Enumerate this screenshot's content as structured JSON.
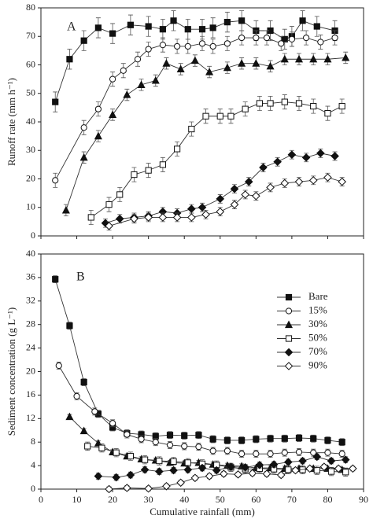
{
  "chart_data": [
    {
      "type": "line",
      "annotation": "A",
      "ylabel": "Runoff rate (mm h⁻¹)",
      "xlim": [
        0,
        90
      ],
      "xticks": [
        0,
        10,
        20,
        30,
        40,
        50,
        60,
        70,
        80,
        90
      ],
      "ylim": [
        0,
        80
      ],
      "yticks": [
        0,
        10,
        20,
        30,
        40,
        50,
        60,
        70,
        80
      ],
      "series": [
        {
          "marker": "square",
          "filled": true,
          "error": 3.5,
          "x": [
            4,
            8,
            12,
            16,
            20,
            25,
            30,
            34,
            37,
            41,
            45,
            48,
            52,
            56,
            60,
            64,
            68,
            70,
            73,
            77,
            82
          ],
          "values": [
            47,
            62,
            68.5,
            73,
            71,
            74,
            73.5,
            72.5,
            75.5,
            72.5,
            72.5,
            73,
            75,
            75.5,
            72,
            72,
            69,
            70,
            75.5,
            73.5,
            72
          ]
        },
        {
          "marker": "circle",
          "filled": false,
          "error": 2.5,
          "x": [
            4,
            12,
            16,
            20,
            23,
            27,
            30,
            34,
            38,
            41,
            45,
            48,
            52,
            56,
            60,
            63,
            67,
            70,
            74,
            78,
            82
          ],
          "values": [
            19.5,
            38,
            44.5,
            55,
            58,
            62,
            65.5,
            67,
            66.5,
            66.5,
            67.5,
            66.5,
            67.5,
            69.5,
            69.5,
            69.5,
            67.5,
            69,
            69.5,
            68,
            69.5
          ]
        },
        {
          "marker": "triangle",
          "filled": true,
          "error": 2,
          "x": [
            7,
            12,
            16,
            20,
            24,
            28,
            32,
            35,
            39,
            43,
            47,
            52,
            56,
            60,
            64,
            68,
            72,
            76,
            80,
            85
          ],
          "values": [
            9,
            27.5,
            35,
            42.5,
            49.5,
            53,
            54.5,
            60.5,
            58.5,
            61.5,
            57.5,
            59,
            60.5,
            60.5,
            59.5,
            62,
            62,
            62,
            62,
            62.5
          ]
        },
        {
          "marker": "square",
          "filled": false,
          "error": 2.5,
          "x": [
            14,
            19,
            22,
            26,
            30,
            34,
            38,
            42,
            46,
            50,
            53,
            57,
            61,
            64,
            68,
            72,
            76,
            80,
            84
          ],
          "values": [
            6.5,
            11,
            14.5,
            21.5,
            23,
            25,
            30.5,
            37.5,
            42,
            42,
            42,
            44.5,
            46.5,
            46.5,
            47,
            46.5,
            45.5,
            43,
            45.5
          ]
        },
        {
          "marker": "diamond",
          "filled": true,
          "error": 1.5,
          "x": [
            18,
            22,
            26,
            30,
            34,
            38,
            42,
            45,
            50,
            54,
            58,
            62,
            66,
            70,
            74,
            78,
            82
          ],
          "values": [
            4.5,
            6,
            6.5,
            7,
            8.5,
            8,
            9.5,
            10,
            13,
            16.5,
            19,
            24,
            26,
            28.5,
            27.5,
            29,
            28
          ]
        },
        {
          "marker": "diamond",
          "filled": false,
          "error": 1.5,
          "x": [
            19,
            26,
            30,
            34,
            38,
            42,
            46,
            50,
            54,
            57,
            60,
            64,
            68,
            72,
            76,
            80,
            84
          ],
          "values": [
            3.5,
            6,
            6.5,
            6.5,
            6.5,
            6.5,
            7.5,
            8.5,
            11,
            14.5,
            14,
            17,
            18.5,
            19,
            19.5,
            20.5,
            19
          ]
        }
      ]
    },
    {
      "type": "line",
      "annotation": "B",
      "ylabel": "Sediment concentration (g L⁻¹)",
      "xlabel": "Cumulative rainfall (mm)",
      "xlim": [
        0,
        90
      ],
      "xticks": [
        0,
        10,
        20,
        30,
        40,
        50,
        60,
        70,
        80,
        90
      ],
      "ylim": [
        0,
        40
      ],
      "yticks": [
        0,
        4,
        8,
        12,
        16,
        20,
        24,
        28,
        32,
        36,
        40
      ],
      "legend": "upper right",
      "series": [
        {
          "name": "Bare",
          "marker": "square",
          "filled": true,
          "error": 0.6,
          "x": [
            4,
            8,
            12,
            16,
            20,
            24,
            28,
            32,
            36,
            40,
            44,
            48,
            52,
            56,
            60,
            64,
            68,
            72,
            76,
            80,
            84
          ],
          "values": [
            35.7,
            27.8,
            18.2,
            12.8,
            10.5,
            9.5,
            9.3,
            9,
            9.2,
            9.1,
            9.2,
            8.5,
            8.3,
            8.3,
            8.5,
            8.6,
            8.6,
            8.7,
            8.6,
            8.3,
            8
          ]
        },
        {
          "name": "15%",
          "marker": "circle",
          "filled": false,
          "error": 0.6,
          "x": [
            5,
            10,
            15,
            20,
            24,
            28,
            32,
            36,
            40,
            44,
            48,
            52,
            56,
            60,
            64,
            68,
            72,
            76,
            80,
            84
          ],
          "values": [
            21,
            15.8,
            13.2,
            11.2,
            9.3,
            8.5,
            8,
            7.5,
            7.3,
            7.2,
            6.5,
            6.5,
            6,
            6,
            6,
            6.2,
            6.3,
            6.2,
            6.2,
            6
          ]
        },
        {
          "name": "30%",
          "marker": "triangle",
          "filled": true,
          "error": 0.4,
          "x": [
            8,
            12,
            16,
            20,
            24,
            28,
            32,
            36,
            40,
            44,
            48,
            52,
            56,
            60,
            64,
            68,
            72,
            76,
            80,
            84
          ],
          "values": [
            12.3,
            9.9,
            7.8,
            6.3,
            5.6,
            5.1,
            4.9,
            4.5,
            4.4,
            4.5,
            4.2,
            4,
            3.9,
            3.6,
            3.6,
            3.5,
            3.5,
            3.5,
            3.5,
            3.3
          ]
        },
        {
          "name": "50%",
          "marker": "square",
          "filled": false,
          "error": 0.7,
          "x": [
            13,
            17,
            21,
            25,
            29,
            33,
            37,
            41,
            45,
            49,
            53,
            57,
            61,
            65,
            69,
            73,
            77,
            81,
            85
          ],
          "values": [
            7.3,
            7,
            6.2,
            5.6,
            5,
            4.8,
            4.7,
            4.5,
            4.3,
            4.1,
            3.7,
            3.4,
            3.5,
            3.4,
            3.3,
            3.3,
            3.2,
            3,
            2.9
          ]
        },
        {
          "name": "70%",
          "marker": "diamond",
          "filled": true,
          "error": 0.5,
          "x": [
            16,
            21,
            25,
            29,
            33,
            37,
            41,
            45,
            49,
            53,
            57,
            61,
            65,
            69,
            73,
            77,
            81,
            85
          ],
          "values": [
            2.2,
            2,
            2.4,
            3.3,
            3,
            3.2,
            3.3,
            3.6,
            3.2,
            3.8,
            3.7,
            4.1,
            4.2,
            4.6,
            4.8,
            5.5,
            4.8,
            5
          ]
        },
        {
          "name": "90%",
          "marker": "diamond",
          "filled": false,
          "error": 0.4,
          "x": [
            19,
            24,
            30,
            35,
            39,
            43,
            47,
            51,
            55,
            59,
            63,
            67,
            71,
            75,
            79,
            83,
            87
          ],
          "values": [
            0,
            0.2,
            0.1,
            0.5,
            1.1,
            1.9,
            2.2,
            2.6,
            2.5,
            2.7,
            2.6,
            2.4,
            3.2,
            3.5,
            3.8,
            3.5,
            3.5
          ]
        }
      ]
    }
  ]
}
